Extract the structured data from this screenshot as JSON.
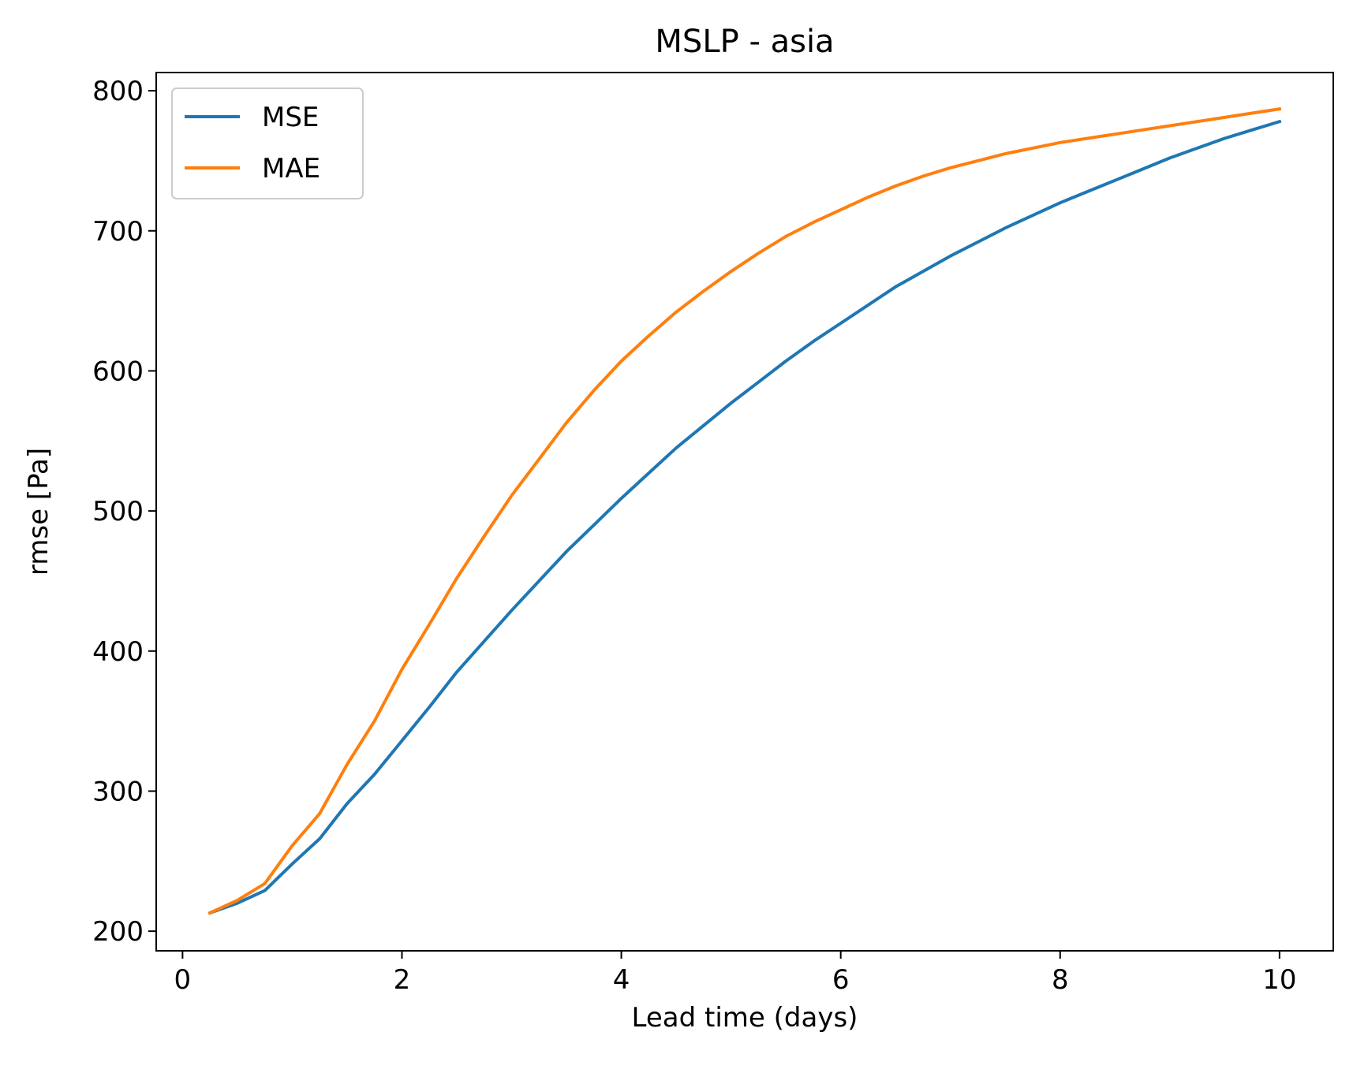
{
  "chart_data": {
    "type": "line",
    "title": "MSLP - asia",
    "xlabel": "Lead time (days)",
    "ylabel": "rmse [Pa]",
    "xlim": [
      -0.24,
      10.49
    ],
    "ylim": [
      186,
      813
    ],
    "xticks": [
      0,
      2,
      4,
      6,
      8,
      10
    ],
    "yticks": [
      200,
      300,
      400,
      500,
      600,
      700,
      800
    ],
    "grid": false,
    "legend": "top-left",
    "x": [
      0.25,
      0.5,
      0.75,
      1.0,
      1.25,
      1.5,
      1.75,
      2.0,
      2.25,
      2.5,
      2.75,
      3.0,
      3.25,
      3.5,
      3.75,
      4.0,
      4.25,
      4.5,
      4.75,
      5.0,
      5.25,
      5.5,
      5.75,
      6.0,
      6.25,
      6.5,
      6.75,
      7.0,
      7.25,
      7.5,
      7.75,
      8.0,
      8.25,
      8.5,
      8.75,
      9.0,
      9.25,
      9.5,
      9.75,
      10.0
    ],
    "series": [
      {
        "name": "MSE",
        "color": "#1f77b4",
        "values": [
          213,
          220,
          229,
          248,
          266,
          291,
          312,
          336,
          360,
          385,
          407,
          429,
          450,
          471,
          490,
          509,
          527,
          545,
          561,
          577,
          592,
          607,
          621,
          634,
          647,
          660,
          671,
          682,
          692,
          702,
          711,
          720,
          728,
          736,
          744,
          752,
          759,
          766,
          772,
          778
        ]
      },
      {
        "name": "MAE",
        "color": "#ff7f0e",
        "values": [
          213,
          222,
          234,
          261,
          284,
          319,
          350,
          387,
          419,
          452,
          482,
          511,
          537,
          563,
          586,
          607,
          625,
          642,
          657,
          671,
          684,
          696,
          706,
          715,
          724,
          732,
          739,
          745,
          750,
          755,
          759,
          763,
          766,
          769,
          772,
          775,
          778,
          781,
          784,
          787
        ]
      }
    ]
  }
}
